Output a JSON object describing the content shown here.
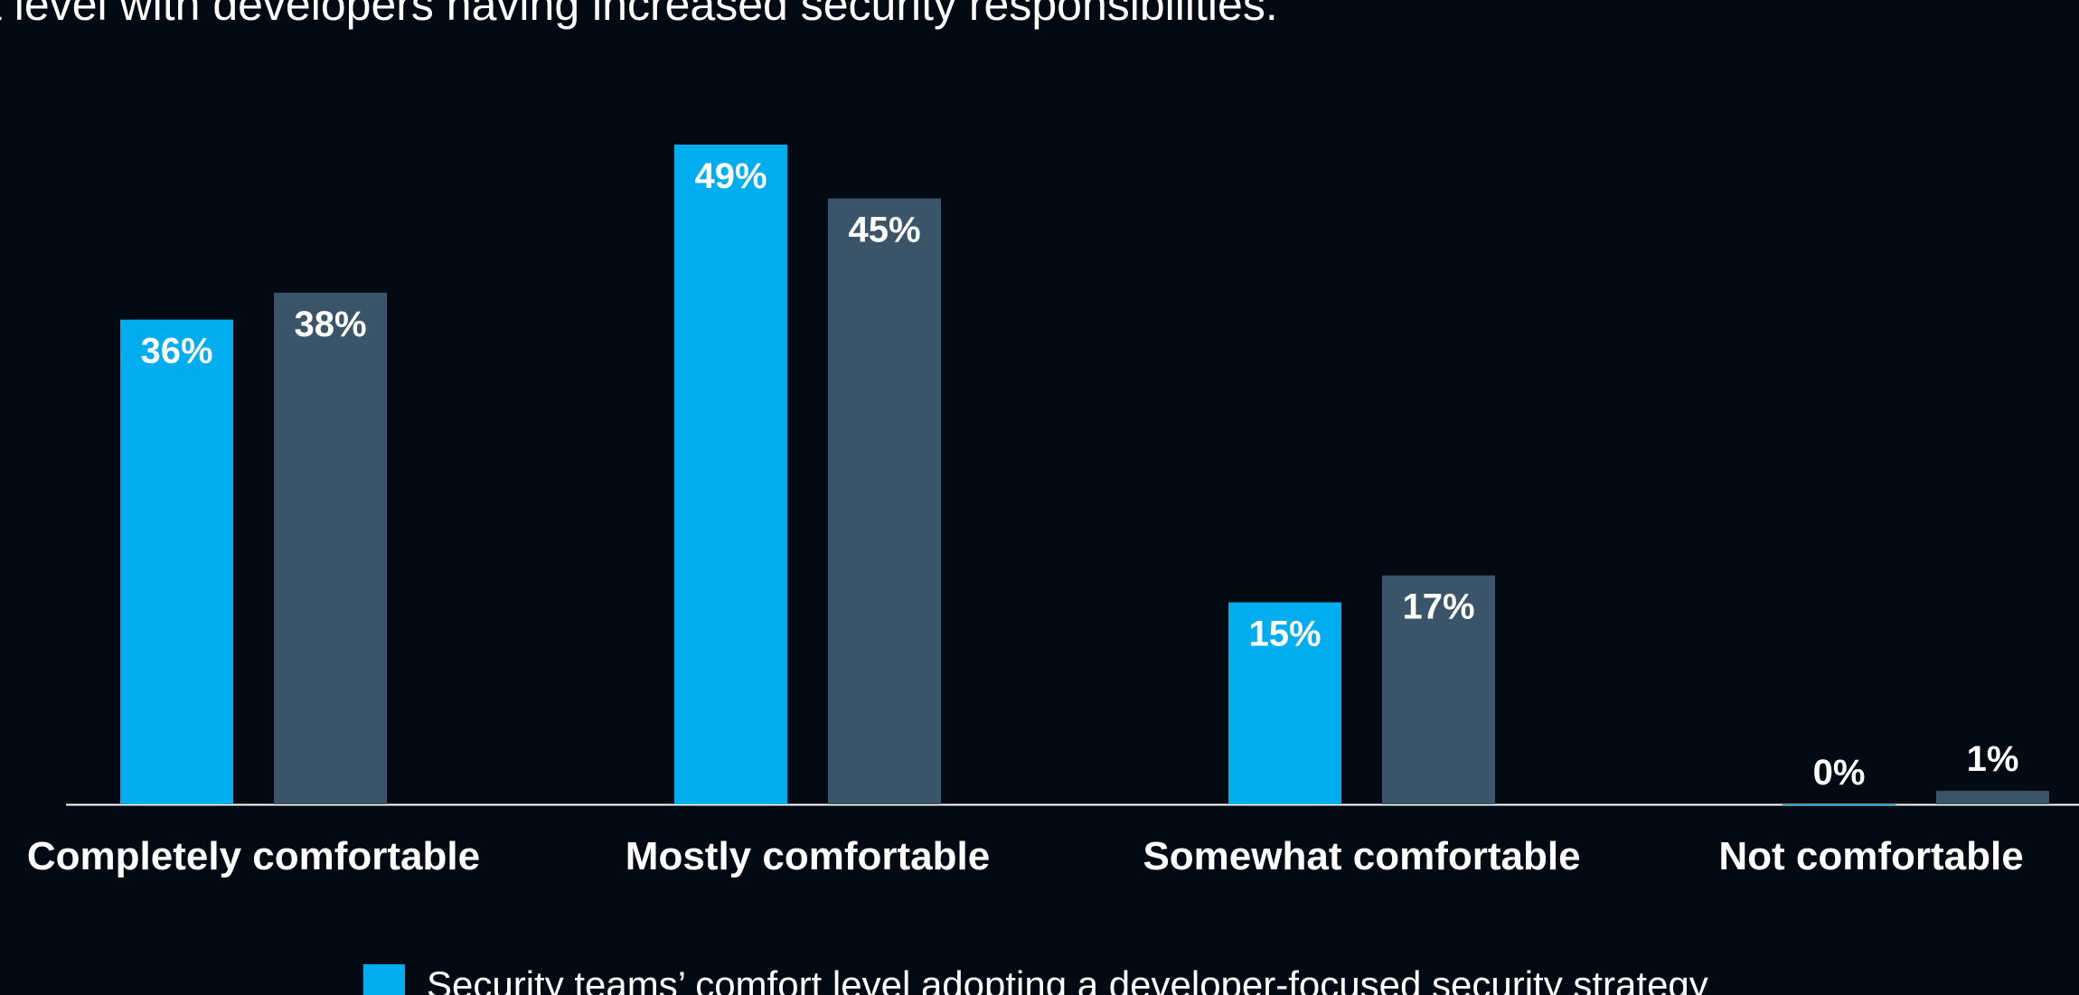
{
  "colors": {
    "background": "#030a13",
    "series1": "#00adee",
    "series2": "#3a5469",
    "axis": "#ffffff",
    "text": "#ffffff"
  },
  "title": "t level with developers having increased security responsibilities.",
  "chart_data": {
    "type": "bar",
    "title": "t level with developers having increased security responsibilities.",
    "categories": [
      "Completely comfortable",
      "Mostly comfortable",
      "Somewhat comfortable",
      "Not comfortable"
    ],
    "series": [
      {
        "name": "Security teams’ comfort level adopting a developer-focused security strategy",
        "values": [
          36,
          49,
          15,
          0
        ]
      },
      {
        "values": [
          38,
          45,
          17,
          1
        ]
      }
    ],
    "value_labels": [
      [
        "36%",
        "49%",
        "15%",
        "0%"
      ],
      [
        "38%",
        "45%",
        "17%",
        "1%"
      ]
    ],
    "ylim": [
      0,
      49
    ],
    "grid": false,
    "legend_position": "bottom",
    "xlabel": "",
    "ylabel": ""
  },
  "legend": {
    "item1": "Security teams’ comfort level adopting a developer-focused security strategy"
  }
}
